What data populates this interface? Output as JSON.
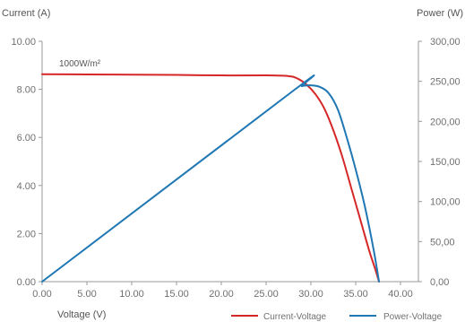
{
  "chart_data": {
    "type": "line",
    "title": "",
    "xlabel": "Voltage (V)",
    "ylabel_left": "Current (A)",
    "ylabel_right": "Power (W)",
    "xlim": [
      0,
      42
    ],
    "ylim_left": [
      0,
      10
    ],
    "ylim_right": [
      0,
      300
    ],
    "x_ticks": [
      "0.00",
      "5.00",
      "10.00",
      "15.00",
      "20.00",
      "25.00",
      "30.00",
      "35.00",
      "40.00"
    ],
    "y_ticks_left": [
      "0.00",
      "2.00",
      "4.00",
      "6.00",
      "8.00",
      "10.00"
    ],
    "y_ticks_right": [
      "0,00",
      "50,00",
      "100,00",
      "150,00",
      "200,00",
      "250,00",
      "300,00"
    ],
    "grid": false,
    "annotation": "1000W/m²",
    "legend_position": "bottom-right",
    "series": [
      {
        "name": "Current-Voltage",
        "axis": "left",
        "color": "#d62728",
        "x": [
          0,
          5,
          10,
          15,
          20,
          25,
          27.5,
          28.5,
          29.5,
          30.5,
          31.5,
          32.5,
          33.5,
          34.5,
          35.5,
          36.5,
          37.2,
          37.6
        ],
        "y": [
          8.63,
          8.62,
          8.61,
          8.6,
          8.58,
          8.58,
          8.55,
          8.45,
          8.2,
          7.8,
          7.2,
          6.3,
          5.2,
          3.9,
          2.6,
          1.3,
          0.5,
          0
        ]
      },
      {
        "name": "Power-Voltage",
        "axis": "right",
        "color": "#1f77b4",
        "x": [
          0,
          28,
          29,
          30,
          31,
          32,
          33,
          34,
          35,
          36,
          37,
          37.6
        ],
        "y": [
          0,
          238,
          244,
          245,
          243,
          235,
          215,
          180,
          140,
          95,
          40,
          0
        ]
      }
    ]
  }
}
